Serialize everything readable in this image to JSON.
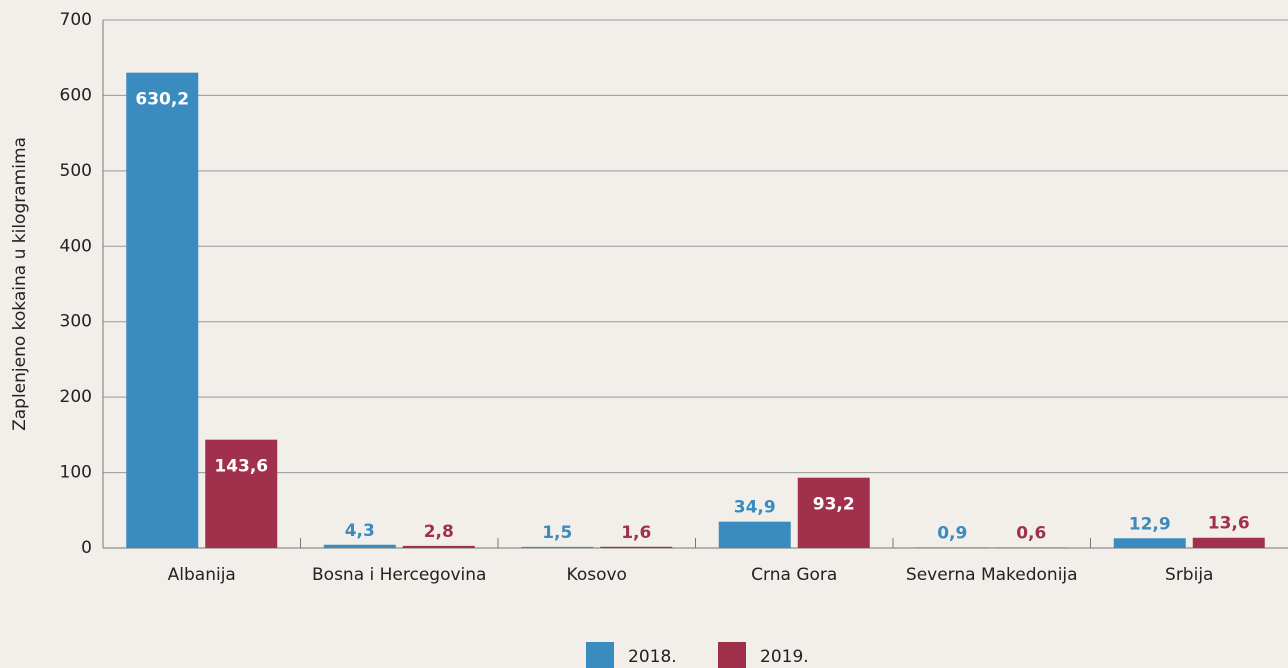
{
  "chart_data": {
    "type": "bar",
    "y_label": "Zaplenjeno kokaina u kilogramima",
    "categories": [
      "Albanija",
      "Bosna i Hercegovina",
      "Kosovo",
      "Crna Gora",
      "Severna Makedonija",
      "Srbija"
    ],
    "series": [
      {
        "name": "2018.",
        "color": "#3a8bc0",
        "values": [
          630.2,
          4.3,
          1.5,
          34.9,
          0.9,
          12.9
        ],
        "value_labels": [
          "630,2",
          "4,3",
          "1,5",
          "34,9",
          "0,9",
          "12,9"
        ]
      },
      {
        "name": "2019.",
        "color": "#a0304c",
        "values": [
          143.6,
          2.8,
          1.6,
          93.2,
          0.6,
          13.6
        ],
        "value_labels": [
          "143,6",
          "2,8",
          "1,6",
          "93,2",
          "0,6",
          "13,6"
        ]
      }
    ],
    "ylim": [
      0,
      700
    ],
    "yticks": [
      0,
      100,
      200,
      300,
      400,
      500,
      600,
      700
    ],
    "grid": true,
    "legend": "bottom"
  }
}
